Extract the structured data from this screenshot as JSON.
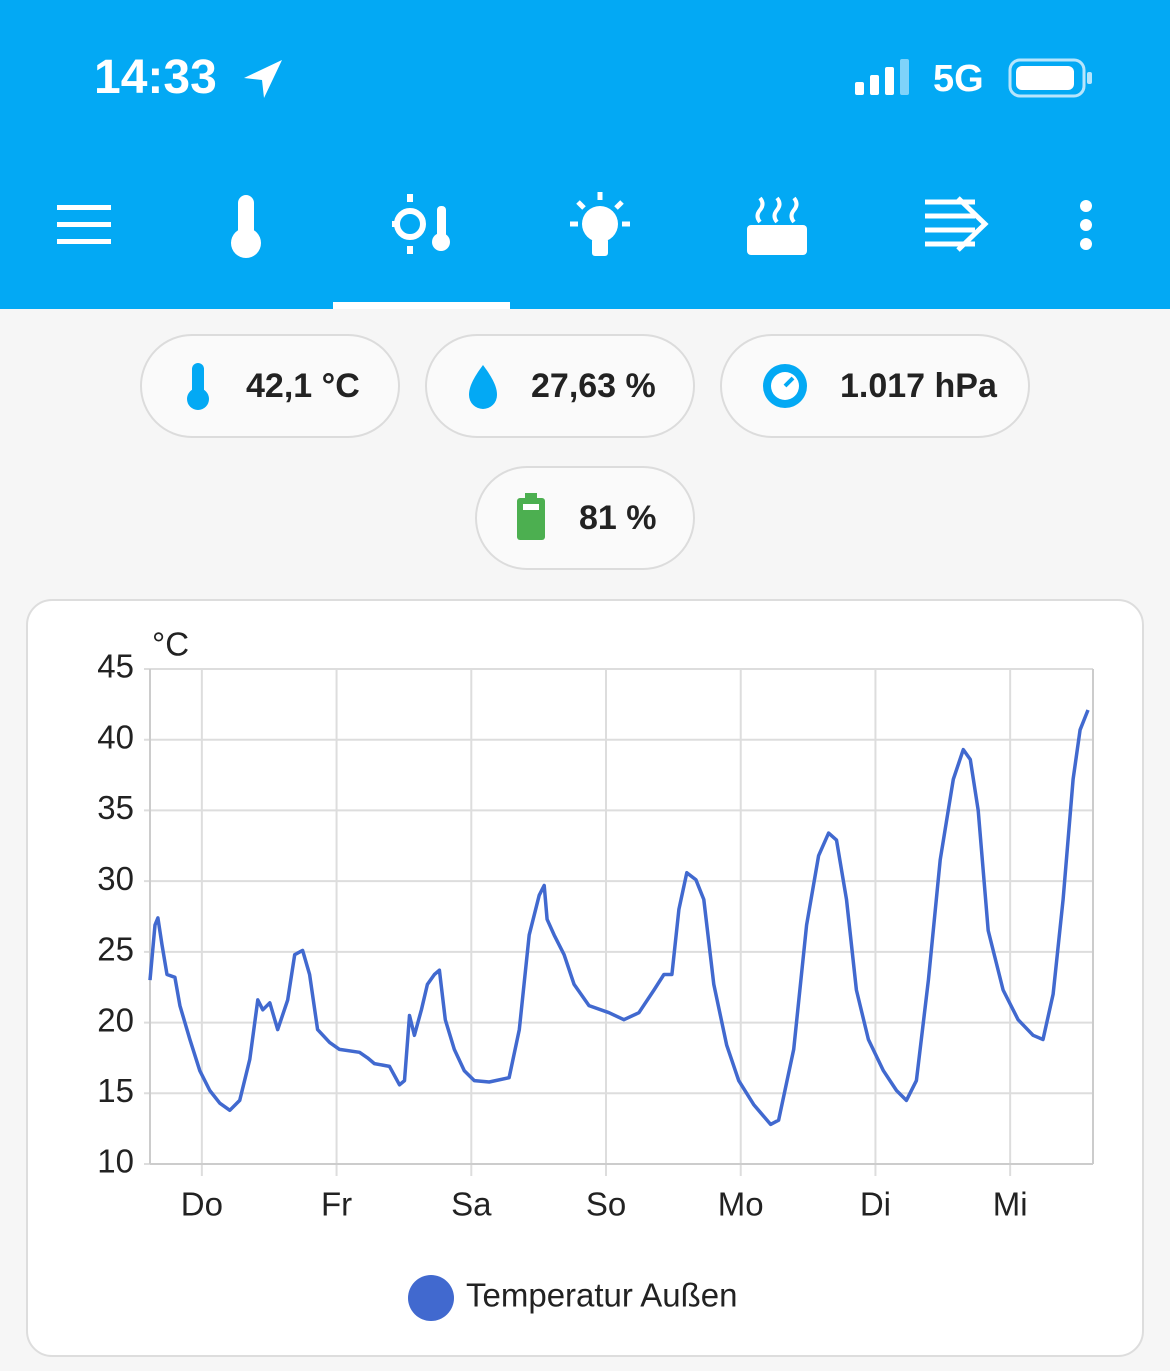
{
  "status_bar": {
    "time": "14:33",
    "network": "5G"
  },
  "chips": [
    "42,1 °C",
    "27,63 %",
    "1.017 hPa",
    "81 %"
  ],
  "chart_data": {
    "type": "line",
    "y_label": "°C",
    "x": [
      -0.385,
      -0.348,
      -0.326,
      -0.296,
      -0.259,
      -0.2,
      -0.163,
      -0.089,
      -0.015,
      0.059,
      0.133,
      0.207,
      0.281,
      0.356,
      0.415,
      0.452,
      0.504,
      0.563,
      0.637,
      0.689,
      0.748,
      0.8,
      0.859,
      0.948,
      1.022,
      1.17,
      1.23,
      1.281,
      1.393,
      1.467,
      1.504,
      1.541,
      1.578,
      1.63,
      1.674,
      1.726,
      1.763,
      1.807,
      1.874,
      1.948,
      2.022,
      2.133,
      2.281,
      2.356,
      2.43,
      2.504,
      2.541,
      2.563,
      2.615,
      2.689,
      2.763,
      2.874,
      3.022,
      3.133,
      3.244,
      3.356,
      3.43,
      3.489,
      3.541,
      3.6,
      3.667,
      3.726,
      3.8,
      3.896,
      3.985,
      4.096,
      4.222,
      4.281,
      4.393,
      4.489,
      4.578,
      4.652,
      4.711,
      4.785,
      4.859,
      4.948,
      5.059,
      5.156,
      5.23,
      5.304,
      5.393,
      5.481,
      5.578,
      5.652,
      5.704,
      5.763,
      5.837,
      5.948,
      6.059,
      6.17,
      6.244,
      6.319,
      6.393,
      6.467,
      6.519,
      6.578
    ],
    "series": [
      {
        "name": "Temperatur Außen",
        "color": "#4169cf",
        "values": [
          23.0,
          26.9,
          27.4,
          25.5,
          23.4,
          23.2,
          21.2,
          18.8,
          16.6,
          15.2,
          14.3,
          13.8,
          14.5,
          17.4,
          21.6,
          20.9,
          21.4,
          19.5,
          21.6,
          24.8,
          25.1,
          23.4,
          19.5,
          18.6,
          18.1,
          17.9,
          17.5,
          17.1,
          16.9,
          15.6,
          15.9,
          20.5,
          19.1,
          20.9,
          22.7,
          23.4,
          23.7,
          20.2,
          18.1,
          16.6,
          15.9,
          15.8,
          16.1,
          19.5,
          26.2,
          29.0,
          29.7,
          27.3,
          26.2,
          24.8,
          22.7,
          21.2,
          20.7,
          20.2,
          20.7,
          22.3,
          23.4,
          23.4,
          28.0,
          30.6,
          30.1,
          28.7,
          22.7,
          18.4,
          15.9,
          14.2,
          12.8,
          13.1,
          18.1,
          26.9,
          31.8,
          33.4,
          32.9,
          28.7,
          22.3,
          18.8,
          16.6,
          15.2,
          14.5,
          15.9,
          23.0,
          31.5,
          37.2,
          39.3,
          38.6,
          35.0,
          26.5,
          22.3,
          20.2,
          19.1,
          18.8,
          22.0,
          28.7,
          37.2,
          40.7,
          42.1
        ]
      }
    ],
    "xlim": [
      -0.385,
      6.615
    ],
    "xticks": [
      {
        "value": 0,
        "label": "Do"
      },
      {
        "value": 1,
        "label": "Fr"
      },
      {
        "value": 2,
        "label": "Sa"
      },
      {
        "value": 3,
        "label": "So"
      },
      {
        "value": 4,
        "label": "Mo"
      },
      {
        "value": 5,
        "label": "Di"
      },
      {
        "value": 6,
        "label": "Mi"
      }
    ],
    "ylim": [
      10,
      45
    ],
    "yticks": [
      10,
      15,
      20,
      25,
      30,
      35,
      40,
      45
    ],
    "grid": true
  }
}
